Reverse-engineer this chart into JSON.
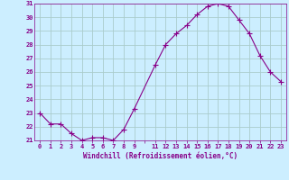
{
  "x": [
    0,
    1,
    2,
    3,
    4,
    5,
    6,
    7,
    8,
    9,
    11,
    12,
    13,
    14,
    15,
    16,
    17,
    18,
    19,
    20,
    21,
    22,
    23
  ],
  "y": [
    23.0,
    22.2,
    22.2,
    21.5,
    21.0,
    21.2,
    21.2,
    21.0,
    21.8,
    23.3,
    26.5,
    28.0,
    28.8,
    29.4,
    30.2,
    30.8,
    31.0,
    30.8,
    29.8,
    28.8,
    27.2,
    26.0,
    25.3
  ],
  "line_color": "#880088",
  "marker": "+",
  "marker_size": 4,
  "bg_color": "#cceeff",
  "grid_color": "#aacccc",
  "tick_color": "#880088",
  "label_color": "#880088",
  "xlabel": "Windchill (Refroidissement éolien,°C)",
  "ylim": [
    21,
    31
  ],
  "yticks": [
    21,
    22,
    23,
    24,
    25,
    26,
    27,
    28,
    29,
    30,
    31
  ],
  "xtick_labels": [
    "0",
    "1",
    "2",
    "3",
    "4",
    "5",
    "6",
    "7",
    "8",
    "9",
    "",
    "11",
    "12",
    "13",
    "14",
    "15",
    "16",
    "17",
    "18",
    "19",
    "20",
    "21",
    "22",
    "23"
  ],
  "xtick_positions": [
    0,
    1,
    2,
    3,
    4,
    5,
    6,
    7,
    8,
    9,
    10,
    11,
    12,
    13,
    14,
    15,
    16,
    17,
    18,
    19,
    20,
    21,
    22,
    23
  ]
}
